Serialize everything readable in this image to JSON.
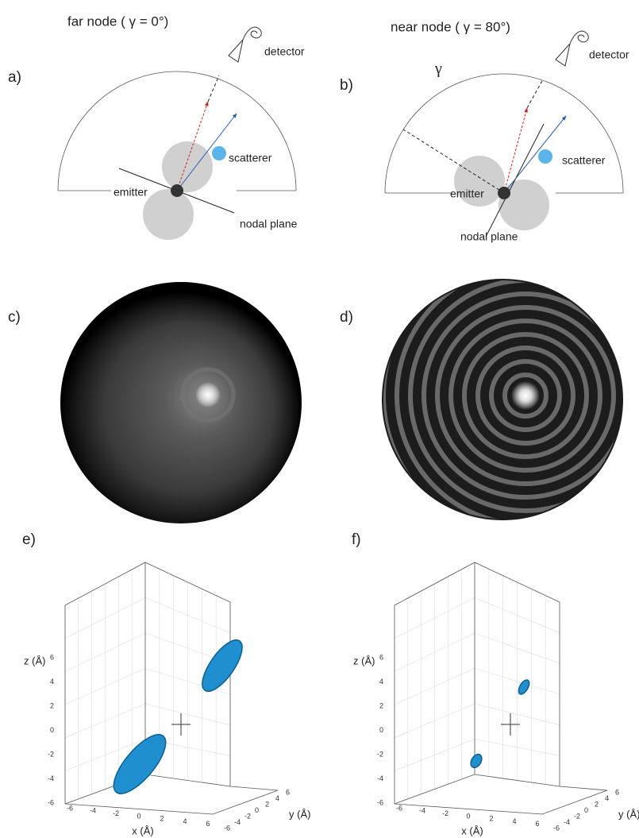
{
  "panels": {
    "a": {
      "label": "a)",
      "title": "far node ( γ = 0°)",
      "detector": "detector",
      "scatterer": "scatterer",
      "emitter": "emitter",
      "nodal_plane": "nodal plane"
    },
    "b": {
      "label": "b)",
      "title": "near node  ( γ = 80°)",
      "gamma": "γ",
      "detector": "detector",
      "scatterer": "scatterer",
      "emitter": "emitter",
      "nodal_plane": "nodal plane"
    },
    "c": {
      "label": "c)"
    },
    "d": {
      "label": "d)"
    },
    "e": {
      "label": "e)",
      "z_label": "z (Å)",
      "y_label": "y (Å)",
      "x_label": "x (Å)",
      "z_ticks": [
        6,
        4,
        2,
        0,
        -2,
        -4,
        -6
      ],
      "x_ticks": [
        -6,
        -4,
        -2,
        0,
        2,
        4,
        6
      ],
      "y_ticks": [
        -6,
        -4,
        -2,
        0,
        2,
        4,
        6
      ]
    },
    "f": {
      "label": "f)",
      "z_label": "z (Å)",
      "y_label": "y (Å)",
      "x_label": "x (Å)",
      "z_ticks": [
        6,
        4,
        2,
        0,
        -2,
        -4,
        -6
      ],
      "x_ticks": [
        -6,
        -4,
        -2,
        0,
        2,
        4,
        6
      ],
      "y_ticks": [
        -6,
        -4,
        -2,
        0,
        2,
        4,
        6
      ]
    }
  }
}
